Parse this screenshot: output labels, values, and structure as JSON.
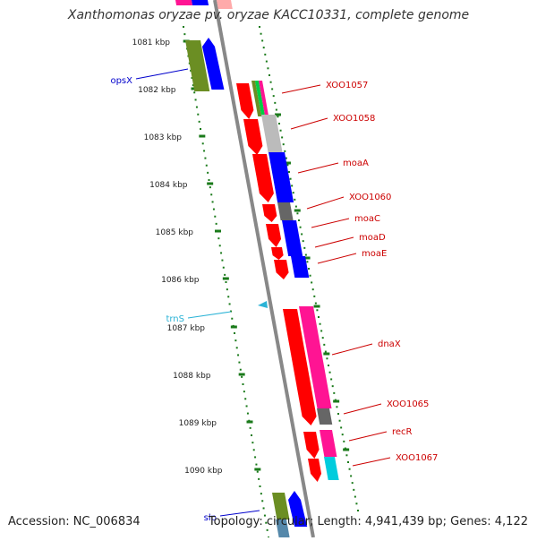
{
  "title": "Xanthomonas oryzae pv. oryzae KACC10331, complete genome",
  "accession": {
    "label": "Accession:",
    "value": "NC_006834"
  },
  "topology": "Topology: circular; Length: 4,941,439 bp; Genes: 4,122",
  "colors": {
    "backbone": "#888888",
    "tick": "#1a7a1a",
    "gene_label": "#cc0000",
    "rna_label": "#2bb3d6",
    "operon_label": "#0000cc",
    "red": "#ff0000",
    "blue": "#0000ff",
    "olive": "#6b8e23",
    "magenta": "#ff1493",
    "gray": "#bbbbbb",
    "dark_gray": "#666666",
    "cyan": "#00ccdd",
    "pink": "#ffaaaa"
  },
  "scale_labels": [
    "1081 kbp",
    "1082 kbp",
    "1083 kbp",
    "1084 kbp",
    "1085 kbp",
    "1086 kbp",
    "1087 kbp",
    "1088 kbp",
    "1089 kbp",
    "1090 kbp"
  ],
  "gene_labels": [
    {
      "text": "XOO1057",
      "kind": "gene"
    },
    {
      "text": "XOO1058",
      "kind": "gene"
    },
    {
      "text": "moaA",
      "kind": "gene"
    },
    {
      "text": "XOO1060",
      "kind": "gene"
    },
    {
      "text": "moaC",
      "kind": "gene"
    },
    {
      "text": "moaD",
      "kind": "gene"
    },
    {
      "text": "moaE",
      "kind": "gene"
    },
    {
      "text": "dnaX",
      "kind": "gene"
    },
    {
      "text": "XOO1065",
      "kind": "gene"
    },
    {
      "text": "recR",
      "kind": "gene"
    },
    {
      "text": "XOO1067",
      "kind": "gene"
    },
    {
      "text": "opsX",
      "kind": "operon"
    },
    {
      "text": "trnS",
      "kind": "rna"
    },
    {
      "text": "slp",
      "kind": "operon"
    }
  ]
}
